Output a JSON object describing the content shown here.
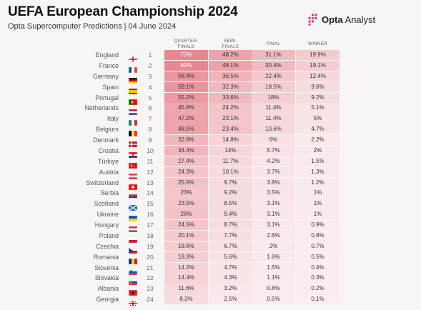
{
  "title": "UEFA European Championship 2024",
  "subtitle": "Opta Supercomputer Predictions | 04 June 2024",
  "brand": {
    "name_bold": "Opta",
    "name_rest": " Analyst",
    "icon": "opta-dots-logo"
  },
  "colors": {
    "heat_max": "#e78791",
    "heat_min": "#fbeef0",
    "accent": "#c2185b"
  },
  "chart_data": {
    "type": "table",
    "columns": [
      "QUARTER-FINALS",
      "SEMI-FINALS",
      "FINAL",
      "WINNER"
    ],
    "column_lines": [
      [
        "QUARTER-",
        "FINALS"
      ],
      [
        "SEMI-",
        "FINALS"
      ],
      [
        "FINAL"
      ],
      [
        "WINNER"
      ]
    ],
    "rows": [
      {
        "team": "England",
        "flag": "england",
        "rank": "1",
        "values": [
          "70%",
          "48.2%",
          "31.1%",
          "19.9%"
        ]
      },
      {
        "team": "France",
        "flag": "france",
        "rank": "2",
        "values": [
          "69%",
          "48.1%",
          "30.4%",
          "19.1%"
        ]
      },
      {
        "team": "Germany",
        "flag": "germany",
        "rank": "3",
        "values": [
          "58.4%",
          "36.5%",
          "22.4%",
          "12.4%"
        ]
      },
      {
        "team": "Spain",
        "flag": "spain",
        "rank": "4",
        "values": [
          "59.1%",
          "32.3%",
          "18.5%",
          "9.6%"
        ]
      },
      {
        "team": "Portugal",
        "flag": "portugal",
        "rank": "5",
        "values": [
          "55.2%",
          "33.6%",
          "18%",
          "9.2%"
        ]
      },
      {
        "team": "Netherlands",
        "flag": "netherlands",
        "rank": "6",
        "values": [
          "45.8%",
          "24.2%",
          "11.4%",
          "5.1%"
        ]
      },
      {
        "team": "Italy",
        "flag": "italy",
        "rank": "7",
        "values": [
          "47.2%",
          "23.1%",
          "11.4%",
          "5%"
        ]
      },
      {
        "team": "Belgium",
        "flag": "belgium",
        "rank": "8",
        "values": [
          "48.5%",
          "23.4%",
          "10.6%",
          "4.7%"
        ]
      },
      {
        "team": "Denmark",
        "flag": "denmark",
        "rank": "9",
        "values": [
          "32.8%",
          "14.8%",
          "6%",
          "2.2%"
        ]
      },
      {
        "team": "Croatia",
        "flag": "croatia",
        "rank": "10",
        "values": [
          "34.4%",
          "14%",
          "5.7%",
          "2%"
        ]
      },
      {
        "team": "Türkiye",
        "flag": "turkiye",
        "rank": "11",
        "values": [
          "27.4%",
          "11.7%",
          "4.2%",
          "1.5%"
        ]
      },
      {
        "team": "Austria",
        "flag": "austria",
        "rank": "12",
        "values": [
          "24.3%",
          "10.1%",
          "3.7%",
          "1.3%"
        ]
      },
      {
        "team": "Switzerland",
        "flag": "switzerland",
        "rank": "13",
        "values": [
          "25.6%",
          "9.7%",
          "3.8%",
          "1.2%"
        ]
      },
      {
        "team": "Serbia",
        "flag": "serbia",
        "rank": "14",
        "values": [
          "23%",
          "9.2%",
          "3.5%",
          "1%"
        ]
      },
      {
        "team": "Scotland",
        "flag": "scotland",
        "rank": "15",
        "values": [
          "23.5%",
          "8.5%",
          "3.1%",
          "1%"
        ]
      },
      {
        "team": "Ukraine",
        "flag": "ukraine",
        "rank": "16",
        "values": [
          "26%",
          "9.4%",
          "3.1%",
          "1%"
        ]
      },
      {
        "team": "Hungary",
        "flag": "hungary",
        "rank": "17",
        "values": [
          "24.5%",
          "8.7%",
          "3.1%",
          "0.9%"
        ]
      },
      {
        "team": "Poland",
        "flag": "poland",
        "rank": "18",
        "values": [
          "20.1%",
          "7.7%",
          "2.6%",
          "0.8%"
        ]
      },
      {
        "team": "Czechia",
        "flag": "czechia",
        "rank": "19",
        "values": [
          "18.6%",
          "6.7%",
          "2%",
          "0.7%"
        ]
      },
      {
        "team": "Romania",
        "flag": "romania",
        "rank": "20",
        "values": [
          "18.3%",
          "5.6%",
          "1.6%",
          "0.5%"
        ]
      },
      {
        "team": "Slovenia",
        "flag": "slovenia",
        "rank": "21",
        "values": [
          "14.2%",
          "4.7%",
          "1.5%",
          "0.4%"
        ]
      },
      {
        "team": "Slovakia",
        "flag": "slovakia",
        "rank": "22",
        "values": [
          "14.4%",
          "4.3%",
          "1.1%",
          "0.3%"
        ]
      },
      {
        "team": "Albania",
        "flag": "albania",
        "rank": "23",
        "values": [
          "11.6%",
          "3.2%",
          "0.8%",
          "0.2%"
        ]
      },
      {
        "team": "Georgia",
        "flag": "georgia",
        "rank": "24",
        "values": [
          "8.3%",
          "2.5%",
          "0.5%",
          "0.1%"
        ]
      }
    ]
  }
}
